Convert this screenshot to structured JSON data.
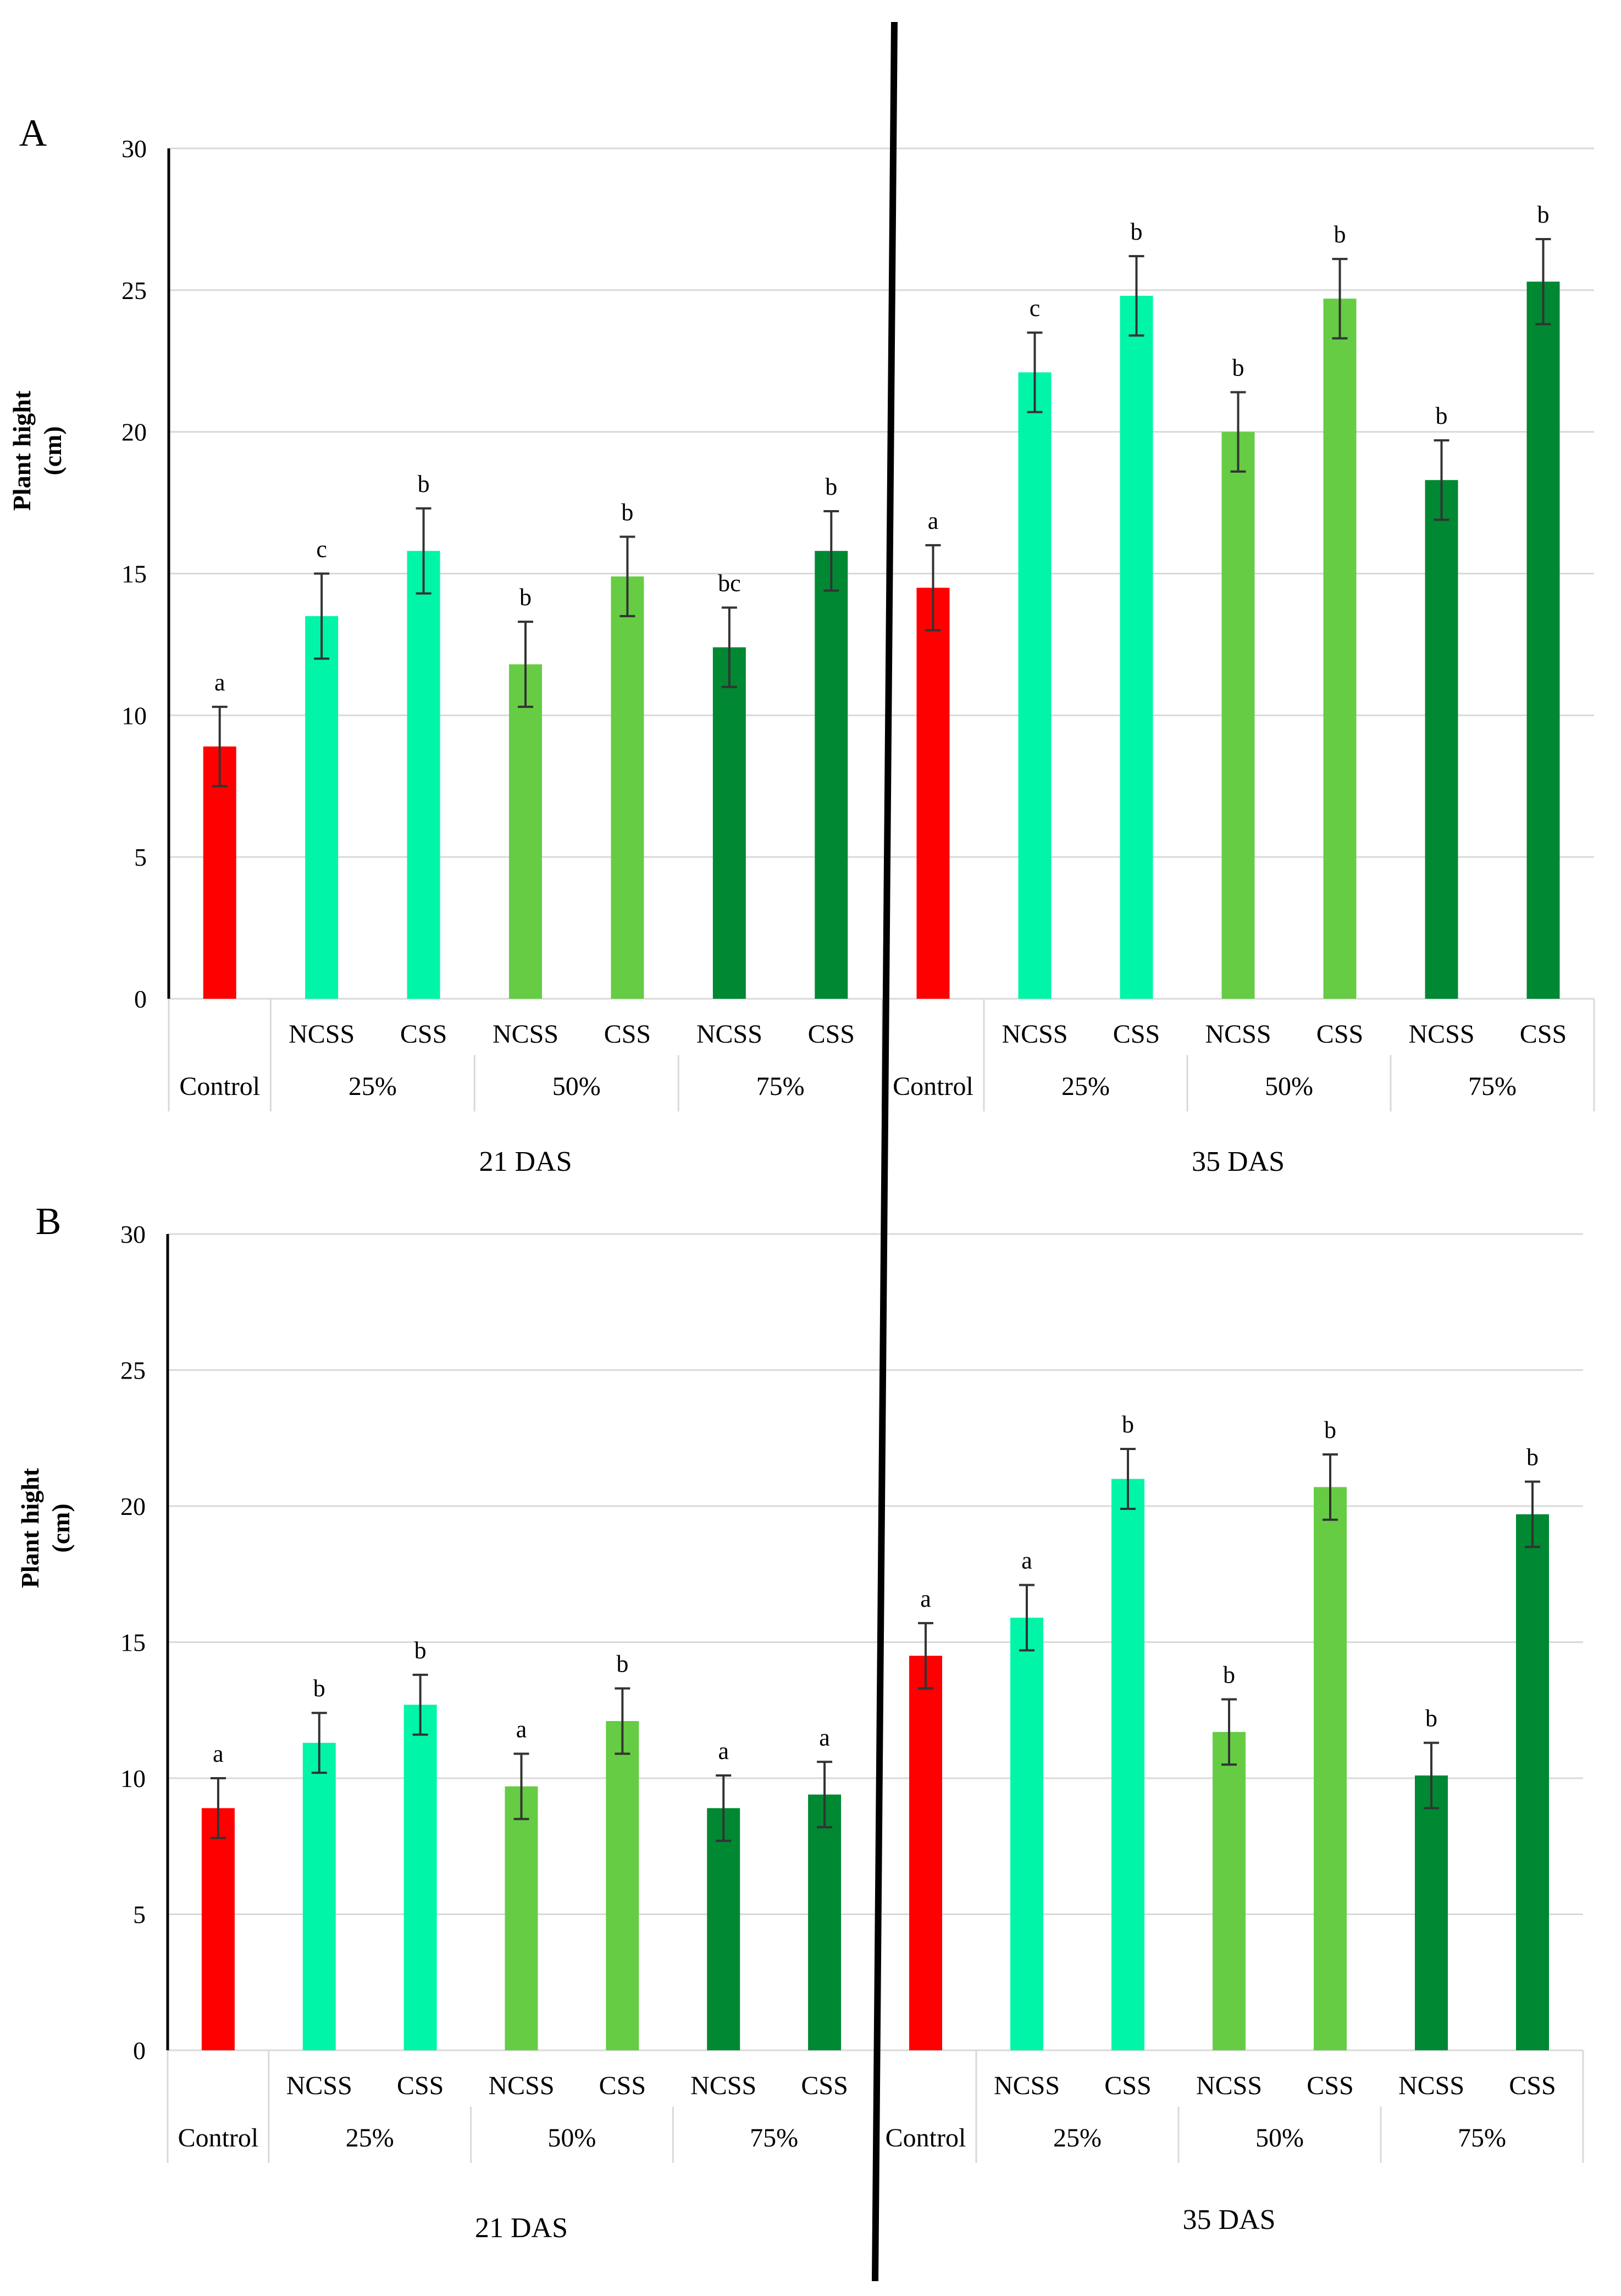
{
  "figure": {
    "divider_color": "#000000"
  },
  "colors": {
    "control": "#ff0000",
    "pct25": "#00f5a8",
    "pct50": "#66cc44",
    "pct75": "#008833",
    "grid": "#d9d9d9",
    "axis": "#000000",
    "error_bar": "#333333"
  },
  "chart_data": [
    {
      "panel_label": "A",
      "type": "bar",
      "ylabel_line1": "Plant hight",
      "ylabel_line2": "(cm)",
      "ylim": [
        0,
        30
      ],
      "yticks": [
        0,
        5,
        10,
        15,
        20,
        25,
        30
      ],
      "groups": [
        {
          "title": "21 DAS",
          "level1_labels": [
            "Control",
            "NCSS",
            "CSS",
            "NCSS",
            "CSS",
            "NCSS",
            "CSS"
          ],
          "level2_labels": [
            "25%",
            "50%",
            "75%"
          ],
          "bars": [
            {
              "treatment": "Control",
              "value": 8.9,
              "error": 1.4,
              "letter": "a"
            },
            {
              "treatment": "25% NCSS",
              "value": 13.5,
              "error": 1.5,
              "letter": "c"
            },
            {
              "treatment": "25% CSS",
              "value": 15.8,
              "error": 1.5,
              "letter": "b"
            },
            {
              "treatment": "50% NCSS",
              "value": 11.8,
              "error": 1.5,
              "letter": "b"
            },
            {
              "treatment": "50% CSS",
              "value": 14.9,
              "error": 1.4,
              "letter": "b"
            },
            {
              "treatment": "75% NCSS",
              "value": 12.4,
              "error": 1.4,
              "letter": "bc"
            },
            {
              "treatment": "75% CSS",
              "value": 15.8,
              "error": 1.4,
              "letter": "b"
            }
          ]
        },
        {
          "title": "35 DAS",
          "level1_labels": [
            "Control",
            "NCSS",
            "CSS",
            "NCSS",
            "CSS",
            "NCSS",
            "CSS"
          ],
          "level2_labels": [
            "25%",
            "50%",
            "75%"
          ],
          "bars": [
            {
              "treatment": "Control",
              "value": 14.5,
              "error": 1.5,
              "letter": "a"
            },
            {
              "treatment": "25% NCSS",
              "value": 22.1,
              "error": 1.4,
              "letter": "c"
            },
            {
              "treatment": "25% CSS",
              "value": 24.8,
              "error": 1.4,
              "letter": "b"
            },
            {
              "treatment": "50% NCSS",
              "value": 20.0,
              "error": 1.4,
              "letter": "b"
            },
            {
              "treatment": "50% CSS",
              "value": 24.7,
              "error": 1.4,
              "letter": "b"
            },
            {
              "treatment": "75% NCSS",
              "value": 18.3,
              "error": 1.4,
              "letter": "b"
            },
            {
              "treatment": "75% CSS",
              "value": 25.3,
              "error": 1.5,
              "letter": "b"
            }
          ]
        }
      ]
    },
    {
      "panel_label": "B",
      "type": "bar",
      "ylabel_line1": "Plant hight",
      "ylabel_line2": "(cm)",
      "ylim": [
        0,
        30
      ],
      "yticks": [
        0,
        5,
        10,
        15,
        20,
        25,
        30
      ],
      "groups": [
        {
          "title": "21 DAS",
          "level1_labels": [
            "Control",
            "NCSS",
            "CSS",
            "NCSS",
            "CSS",
            "NCSS",
            "CSS"
          ],
          "level2_labels": [
            "25%",
            "50%",
            "75%"
          ],
          "bars": [
            {
              "treatment": "Control",
              "value": 8.9,
              "error": 1.1,
              "letter": "a"
            },
            {
              "treatment": "25% NCSS",
              "value": 11.3,
              "error": 1.1,
              "letter": "b"
            },
            {
              "treatment": "25% CSS",
              "value": 12.7,
              "error": 1.1,
              "letter": "b"
            },
            {
              "treatment": "50% NCSS",
              "value": 9.7,
              "error": 1.2,
              "letter": "a"
            },
            {
              "treatment": "50% CSS",
              "value": 12.1,
              "error": 1.2,
              "letter": "b"
            },
            {
              "treatment": "75% NCSS",
              "value": 8.9,
              "error": 1.2,
              "letter": "a"
            },
            {
              "treatment": "75% CSS",
              "value": 9.4,
              "error": 1.2,
              "letter": "a"
            }
          ]
        },
        {
          "title": "35 DAS",
          "level1_labels": [
            "Control",
            "NCSS",
            "CSS",
            "NCSS",
            "CSS",
            "NCSS",
            "CSS"
          ],
          "level2_labels": [
            "25%",
            "50%",
            "75%"
          ],
          "bars": [
            {
              "treatment": "Control",
              "value": 14.5,
              "error": 1.2,
              "letter": "a"
            },
            {
              "treatment": "25% NCSS",
              "value": 15.9,
              "error": 1.2,
              "letter": "a"
            },
            {
              "treatment": "25% CSS",
              "value": 21.0,
              "error": 1.1,
              "letter": "b"
            },
            {
              "treatment": "50% NCSS",
              "value": 11.7,
              "error": 1.2,
              "letter": "b"
            },
            {
              "treatment": "50% CSS",
              "value": 20.7,
              "error": 1.2,
              "letter": "b"
            },
            {
              "treatment": "75% NCSS",
              "value": 10.1,
              "error": 1.2,
              "letter": "b"
            },
            {
              "treatment": "75% CSS",
              "value": 19.7,
              "error": 1.2,
              "letter": "b"
            }
          ]
        }
      ]
    }
  ]
}
